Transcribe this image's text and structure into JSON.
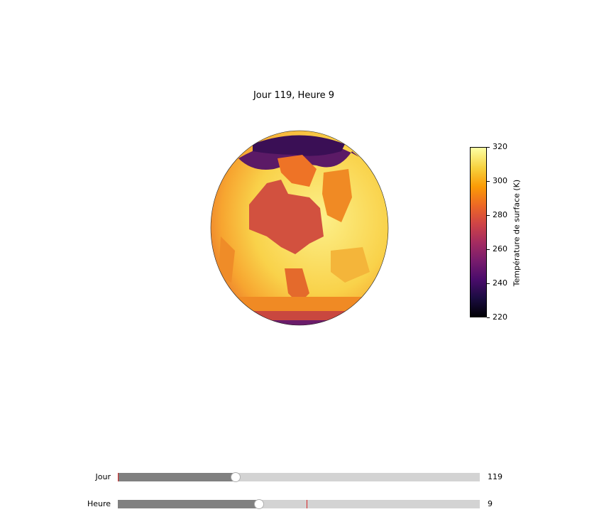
{
  "figure": {
    "title": "Jour 119, Heure 9"
  },
  "colorbar": {
    "label": "Température de surface (K)",
    "min": 220,
    "max": 320,
    "ticks": [
      "220",
      "240",
      "260",
      "280",
      "300",
      "320"
    ],
    "colormap": "inferno"
  },
  "sliders": {
    "jour": {
      "label": "Jour",
      "value": "119",
      "fraction": 0.325,
      "marker_fraction": 0.0
    },
    "heure": {
      "label": "Heure",
      "value": "9",
      "fraction": 0.391,
      "marker_fraction": 0.522
    }
  }
}
